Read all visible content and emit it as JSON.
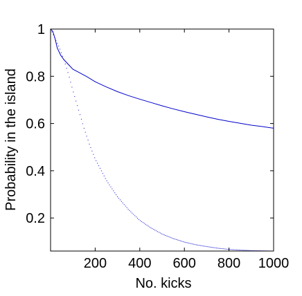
{
  "chart_data": {
    "type": "line",
    "title": "",
    "xlabel": "No. kicks",
    "ylabel": "Probability in the island",
    "xlim": [
      0,
      1000
    ],
    "ylim": [
      0.06,
      1
    ],
    "xticks": [
      200,
      400,
      600,
      800,
      1000
    ],
    "yticks": [
      0.2,
      0.4,
      0.6,
      0.8,
      1
    ],
    "grid": false,
    "series_color": "#0000cc",
    "series": [
      {
        "style": "solid",
        "x": [
          0,
          10,
          20,
          30,
          45,
          60,
          80,
          100,
          120,
          140,
          160,
          200,
          250,
          300,
          350,
          400,
          450,
          500,
          550,
          600,
          650,
          700,
          750,
          800,
          850,
          900,
          950,
          1000
        ],
        "values": [
          1.0,
          0.99,
          0.96,
          0.92,
          0.89,
          0.87,
          0.85,
          0.83,
          0.82,
          0.81,
          0.8,
          0.777,
          0.755,
          0.735,
          0.718,
          0.703,
          0.689,
          0.675,
          0.662,
          0.65,
          0.639,
          0.628,
          0.618,
          0.609,
          0.601,
          0.593,
          0.587,
          0.58
        ]
      },
      {
        "style": "dotted",
        "x": [
          0,
          20,
          40,
          60,
          80,
          100,
          125,
          150,
          175,
          200,
          250,
          300,
          350,
          400,
          450,
          500,
          550,
          600,
          650,
          700,
          750,
          800,
          850,
          900,
          950,
          1000
        ],
        "values": [
          1.0,
          0.96,
          0.92,
          0.87,
          0.81,
          0.74,
          0.66,
          0.58,
          0.51,
          0.45,
          0.36,
          0.29,
          0.235,
          0.19,
          0.158,
          0.132,
          0.113,
          0.098,
          0.087,
          0.079,
          0.072,
          0.067,
          0.064,
          0.062,
          0.061,
          0.06
        ]
      }
    ]
  }
}
